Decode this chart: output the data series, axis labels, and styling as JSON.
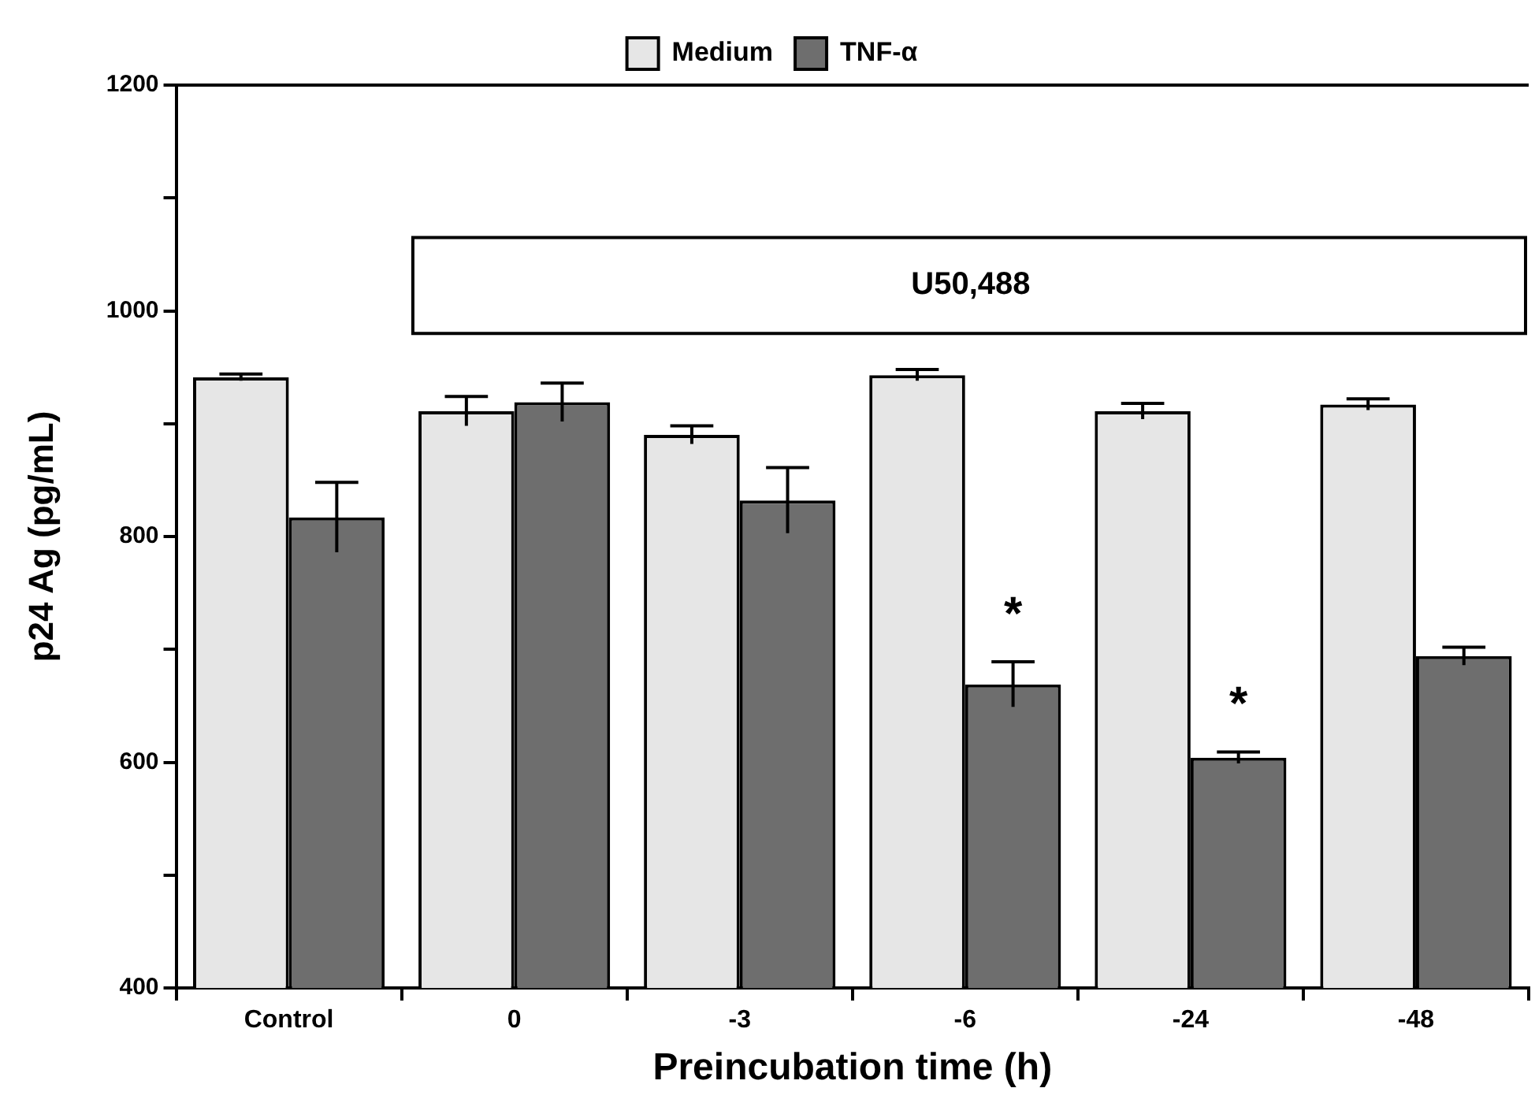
{
  "chart_data": {
    "type": "bar",
    "xlabel": "Preincubation time (h)",
    "ylabel": "p24 Ag (pg/mL)",
    "categories": [
      "Control",
      "0",
      "-3",
      "-6",
      "-24",
      "-48"
    ],
    "series": [
      {
        "name": "Medium",
        "color": "#e6e6e6",
        "values": [
          941,
          911,
          890,
          943,
          911,
          917
        ],
        "errors": [
          3,
          13,
          8,
          5,
          7,
          5
        ]
      },
      {
        "name": "TNF-α",
        "color": "#6e6e6e",
        "values": [
          817,
          919,
          832,
          669,
          604,
          694
        ],
        "errors": [
          31,
          17,
          29,
          20,
          5,
          8
        ]
      }
    ],
    "ylim": [
      400,
      1200
    ],
    "yticks": [
      400,
      {
        "value": 500,
        "label": null
      },
      600,
      {
        "value": 700,
        "label": null
      },
      800,
      {
        "value": 900,
        "label": null
      },
      1000,
      {
        "value": 1100,
        "label": null
      },
      1200
    ],
    "grid": false,
    "legend": "top",
    "annotations": [
      "U50,488",
      {
        "text": "*",
        "x": "-6",
        "y": 740
      },
      {
        "text": "*",
        "x": "-24",
        "y": 661
      }
    ]
  }
}
